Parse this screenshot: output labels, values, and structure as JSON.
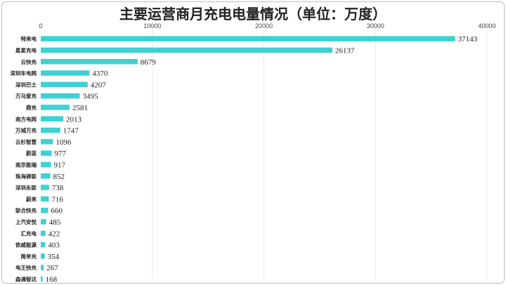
{
  "chart_data": {
    "type": "bar",
    "orientation": "horizontal",
    "title": "主要运营商月充电电量情况（单位：万度）",
    "xlabel": "",
    "ylabel": "",
    "xlim": [
      0,
      40000
    ],
    "ticks": [
      "0",
      "10000",
      "20000",
      "30000",
      "40000"
    ],
    "grid": true,
    "bar_color": "#3fd0d4",
    "categories": [
      "特来电",
      "星星充电",
      "云快充",
      "深圳车电网",
      "深圳巴士",
      "万马爱充",
      "鼎充",
      "南方电网",
      "万城万充",
      "云杉智慧",
      "蔚蓝",
      "南京能瑞",
      "珠海驿联",
      "深圳永联",
      "蔚来",
      "联合快充",
      "上汽安悦",
      "汇充电",
      "依威能源",
      "简单充",
      "电王快充",
      "森通智达"
    ],
    "values": [
      37143,
      26137,
      8679,
      4370,
      4207,
      3495,
      2581,
      2013,
      1747,
      1096,
      977,
      917,
      852,
      738,
      716,
      660,
      485,
      422,
      403,
      354,
      267,
      168
    ]
  }
}
